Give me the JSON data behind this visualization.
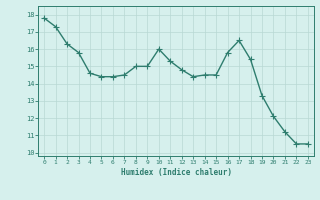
{
  "x": [
    0,
    1,
    2,
    3,
    4,
    5,
    6,
    7,
    8,
    9,
    10,
    11,
    12,
    13,
    14,
    15,
    16,
    17,
    18,
    19,
    20,
    21,
    22,
    23
  ],
  "y": [
    17.8,
    17.3,
    16.3,
    15.8,
    14.6,
    14.4,
    14.4,
    14.5,
    15.0,
    15.0,
    16.0,
    15.3,
    14.8,
    14.4,
    14.5,
    14.5,
    15.8,
    16.5,
    15.4,
    13.3,
    12.1,
    11.2,
    10.5,
    10.5
  ],
  "line_color": "#2e7d6e",
  "marker": "D",
  "marker_size": 2.0,
  "bg_color": "#d6f0ed",
  "grid_color": "#b8d8d4",
  "xlabel": "Humidex (Indice chaleur)",
  "xlim": [
    -0.5,
    23.5
  ],
  "ylim": [
    9.8,
    18.5
  ],
  "yticks": [
    10,
    11,
    12,
    13,
    14,
    15,
    16,
    17,
    18
  ],
  "xticks": [
    0,
    1,
    2,
    3,
    4,
    5,
    6,
    7,
    8,
    9,
    10,
    11,
    12,
    13,
    14,
    15,
    16,
    17,
    18,
    19,
    20,
    21,
    22,
    23
  ],
  "tick_color": "#2e7d6e",
  "label_color": "#2e7d6e",
  "line_width": 1.0,
  "spine_color": "#2e7d6e"
}
